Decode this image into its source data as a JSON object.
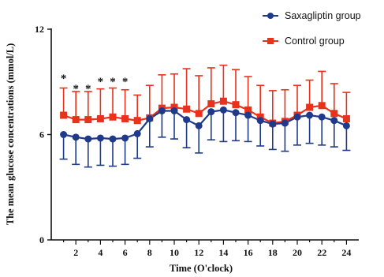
{
  "chart_data": {
    "type": "line",
    "title": "",
    "xlabel": "Time (O'clock)",
    "ylabel": "The mean glucose concentrations (mmol/L)",
    "xlim": [
      0,
      25
    ],
    "ylim": [
      0,
      12
    ],
    "xticks": [
      2,
      4,
      6,
      8,
      10,
      12,
      14,
      16,
      18,
      20,
      22,
      24
    ],
    "yticks": [
      0,
      6,
      12
    ],
    "legend_position": "top-right",
    "grid": false,
    "x": [
      1,
      2,
      3,
      4,
      5,
      6,
      7,
      8,
      9,
      10,
      11,
      12,
      13,
      14,
      15,
      16,
      17,
      18,
      19,
      20,
      21,
      22,
      23,
      24
    ],
    "series": [
      {
        "name": "Saxagliptin group",
        "color": "#1f3a8a",
        "marker": "circle",
        "values": [
          6.0,
          5.85,
          5.75,
          5.8,
          5.75,
          5.8,
          6.05,
          6.9,
          7.35,
          7.35,
          6.85,
          6.5,
          7.3,
          7.4,
          7.25,
          7.1,
          6.8,
          6.6,
          6.65,
          7.0,
          7.1,
          7.0,
          6.8,
          6.5
        ],
        "error": [
          1.4,
          1.55,
          1.6,
          1.55,
          1.55,
          1.5,
          1.4,
          1.6,
          1.5,
          1.6,
          1.6,
          1.55,
          1.6,
          1.8,
          1.6,
          1.5,
          1.45,
          1.45,
          1.6,
          1.6,
          1.6,
          1.6,
          1.5,
          1.4
        ]
      },
      {
        "name": "Control group",
        "color": "#e8321c",
        "marker": "square",
        "values": [
          7.1,
          6.85,
          6.85,
          6.9,
          7.0,
          6.9,
          6.8,
          6.95,
          7.5,
          7.55,
          7.45,
          7.2,
          7.75,
          7.9,
          7.7,
          7.4,
          7.0,
          6.65,
          6.75,
          7.1,
          7.55,
          7.65,
          7.2,
          6.9
        ]
      }
    ],
    "control_error_upper": [
      1.55,
      1.6,
      1.6,
      1.7,
      1.65,
      1.65,
      1.45,
      1.85,
      1.9,
      1.9,
      2.3,
      2.15,
      2.05,
      2.05,
      2.0,
      1.9,
      1.8,
      1.85,
      1.8,
      1.7,
      1.55,
      1.95,
      1.7,
      1.5
    ],
    "significance": [
      {
        "x": 1,
        "label": "*"
      },
      {
        "x": 2,
        "label": "*"
      },
      {
        "x": 3,
        "label": "*"
      },
      {
        "x": 4,
        "label": "*"
      },
      {
        "x": 5,
        "label": "*"
      },
      {
        "x": 6,
        "label": "*"
      }
    ]
  }
}
